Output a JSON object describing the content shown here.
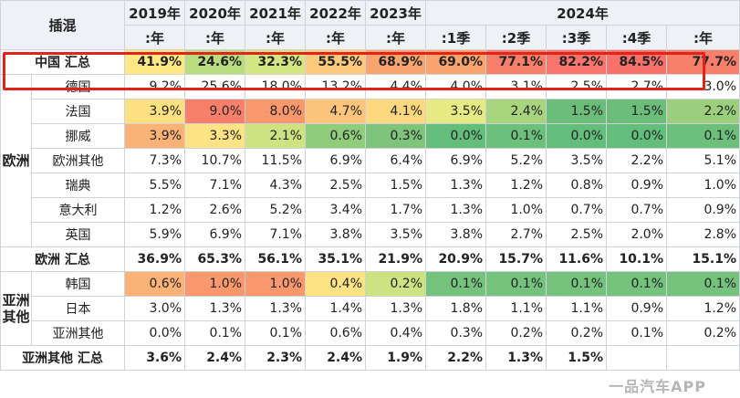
{
  "header": {
    "corner": "插混",
    "years": [
      "2019年",
      "2020年",
      "2021年",
      "2022年",
      "2023年"
    ],
    "year2024": "2024年",
    "sub_year": ":年",
    "quarters": [
      ":1季",
      ":2季",
      ":3季",
      ":4季",
      ":年"
    ]
  },
  "rows": [
    {
      "label": "中国 汇总",
      "type": "sub",
      "values": [
        "41.9%",
        "24.6%",
        "32.3%",
        "55.5%",
        "68.9%",
        "69.0%",
        "77.1%",
        "82.2%",
        "84.5%",
        "77.7%"
      ],
      "colors": [
        "#fde883",
        "#b8dc7e",
        "#d3e682",
        "#fdc97c",
        "#f9a36f",
        "#f9a36f",
        "#f8806a",
        "#f8756b",
        "#f8716b",
        "#f8806a"
      ]
    },
    {
      "label": "德国",
      "values": [
        "9.2%",
        "25.6%",
        "18.0%",
        "13.2%",
        "4.4%",
        "4.0%",
        "3.1%",
        "2.5%",
        "2.7%",
        "3.0%"
      ],
      "colors": [
        "#fff",
        "#fff",
        "#fff",
        "#fff",
        "#fff",
        "#fff",
        "#fff",
        "#fff",
        "#fff",
        "#fff"
      ]
    },
    {
      "label": "法国",
      "values": [
        "3.9%",
        "9.0%",
        "8.0%",
        "4.7%",
        "4.1%",
        "3.5%",
        "2.4%",
        "1.5%",
        "1.5%",
        "2.2%"
      ],
      "colors": [
        "#fde07f",
        "#f8806a",
        "#f9976d",
        "#fcc57b",
        "#fdd87e",
        "#e7e982",
        "#a8d47d",
        "#6dbd7a",
        "#6dbd7a",
        "#9ccf7d"
      ]
    },
    {
      "label": "挪威",
      "values": [
        "3.9%",
        "3.3%",
        "2.1%",
        "0.6%",
        "0.3%",
        "0.0%",
        "0.1%",
        "0.0%",
        "0.0%",
        "0.1%"
      ],
      "colors": [
        "#fbb277",
        "#fde383",
        "#cde381",
        "#8fcc7c",
        "#7ec47b",
        "#63be7b",
        "#6cc07b",
        "#63be7b",
        "#63be7b",
        "#6cc07b"
      ]
    },
    {
      "label": "欧洲其他",
      "values": [
        "7.3%",
        "10.7%",
        "11.5%",
        "6.9%",
        "6.4%",
        "6.9%",
        "5.2%",
        "3.5%",
        "2.2%",
        "5.1%"
      ],
      "colors": [
        "#fff",
        "#fff",
        "#fff",
        "#fff",
        "#fff",
        "#fff",
        "#fff",
        "#fff",
        "#fff",
        "#fff"
      ]
    },
    {
      "label": "瑞典",
      "values": [
        "5.5%",
        "7.1%",
        "4.3%",
        "2.5%",
        "1.5%",
        "1.3%",
        "1.2%",
        "0.8%",
        "0.9%",
        "1.0%"
      ],
      "colors": [
        "#fff",
        "#fff",
        "#fff",
        "#fff",
        "#fff",
        "#fff",
        "#fff",
        "#fff",
        "#fff",
        "#fff"
      ]
    },
    {
      "label": "意大利",
      "values": [
        "1.2%",
        "2.6%",
        "5.2%",
        "3.4%",
        "1.7%",
        "1.3%",
        "1.0%",
        "0.7%",
        "0.7%",
        "0.9%"
      ],
      "colors": [
        "#fff",
        "#fff",
        "#fff",
        "#fff",
        "#fff",
        "#fff",
        "#fff",
        "#fff",
        "#fff",
        "#fff"
      ]
    },
    {
      "label": "英国",
      "values": [
        "5.9%",
        "6.9%",
        "7.1%",
        "3.8%",
        "3.5%",
        "3.8%",
        "2.7%",
        "2.5%",
        "2.0%",
        "2.8%"
      ],
      "colors": [
        "#fff",
        "#fff",
        "#fff",
        "#fff",
        "#fff",
        "#fff",
        "#fff",
        "#fff",
        "#fff",
        "#fff"
      ]
    },
    {
      "label": "欧洲 汇总",
      "type": "sub",
      "values": [
        "36.9%",
        "65.3%",
        "56.1%",
        "35.1%",
        "21.9%",
        "20.9%",
        "15.7%",
        "11.6%",
        "10.1%",
        "15.1%"
      ],
      "colors": [
        "#fff",
        "#fff",
        "#fff",
        "#fff",
        "#fff",
        "#fff",
        "#fff",
        "#fff",
        "#fff",
        "#fff"
      ]
    },
    {
      "label": "韩国",
      "values": [
        "0.6%",
        "1.0%",
        "1.0%",
        "0.4%",
        "0.2%",
        "0.1%",
        "0.1%",
        "0.1%",
        "0.1%",
        "0.1%"
      ],
      "colors": [
        "#fbb277",
        "#f9976d",
        "#f9976d",
        "#fde383",
        "#cde381",
        "#74c27b",
        "#74c27b",
        "#74c27b",
        "#74c27b",
        "#74c27b"
      ]
    },
    {
      "label": "日本",
      "values": [
        "3.0%",
        "1.3%",
        "1.3%",
        "1.4%",
        "1.3%",
        "1.8%",
        "1.1%",
        "1.1%",
        "0.9%",
        "1.2%"
      ],
      "colors": [
        "#fff",
        "#fff",
        "#fff",
        "#fff",
        "#fff",
        "#fff",
        "#fff",
        "#fff",
        "#fff",
        "#fff"
      ]
    },
    {
      "label": "亚洲其他",
      "values": [
        "0.0%",
        "0.1%",
        "0.1%",
        "0.6%",
        "0.4%",
        "0.3%",
        "0.2%",
        "0.2%",
        "0.1%",
        "0.2%"
      ],
      "colors": [
        "#fff",
        "#fff",
        "#fff",
        "#fff",
        "#fff",
        "#fff",
        "#fff",
        "#fff",
        "#fff",
        "#fff"
      ]
    },
    {
      "label": "亚洲其他 汇总",
      "type": "sub",
      "values": [
        "3.6%",
        "2.4%",
        "2.3%",
        "2.4%",
        "1.9%",
        "2.2%",
        "1.3%",
        "1.5%",
        "",
        ""
      ],
      "colors": [
        "#fff",
        "#fff",
        "#fff",
        "#fff",
        "#fff",
        "#fff",
        "#fff",
        "#fff",
        "#fff",
        "#fff"
      ]
    }
  ],
  "regions": {
    "europe": "欧洲",
    "asia": "亚洲其他"
  },
  "watermark": "一品汽车APP"
}
